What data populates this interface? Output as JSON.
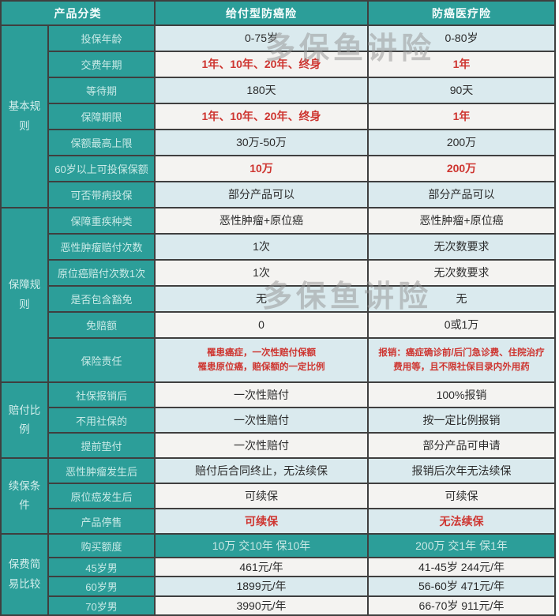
{
  "colors": {
    "teal": "#2C9E99",
    "red": "#CE3530",
    "rowLight": "#DAEAEE",
    "rowWhite": "#F4F3F1",
    "border": "#3F3F3F"
  },
  "watermark": {
    "text": "多保鱼讲险"
  },
  "table": {
    "header": {
      "h": 29,
      "col1": "产品分类",
      "col2": "给付型防癌险",
      "col3": "防癌医疗险"
    },
    "groups": [
      {
        "label": "基本规则",
        "start": 0,
        "count": 7
      },
      {
        "label": "保障规则",
        "start": 7,
        "count": 6
      },
      {
        "label": "赔付比例",
        "start": 13,
        "count": 3
      },
      {
        "label": "续保条件",
        "start": 16,
        "count": 3
      },
      {
        "label": "保费简易比较",
        "start": 19,
        "count": 4
      }
    ],
    "rows": [
      {
        "label": "投保年龄",
        "h": 31,
        "bg": "lb",
        "c2": {
          "text": "0-75岁",
          "emphasis": "dark"
        },
        "c3": {
          "text": "0-80岁",
          "emphasis": "dark"
        }
      },
      {
        "label": "交费年期",
        "h": 31,
        "bg": "wt",
        "c2": {
          "text": "1年、10年、20年、终身",
          "emphasis": "red"
        },
        "c3": {
          "text": "1年",
          "emphasis": "red"
        }
      },
      {
        "label": "等待期",
        "h": 31,
        "bg": "lb",
        "c2": {
          "text": "180天",
          "emphasis": "dark"
        },
        "c3": {
          "text": "90天",
          "emphasis": "dark"
        }
      },
      {
        "label": "保障期限",
        "h": 31,
        "bg": "wt",
        "c2": {
          "text": "1年、10年、20年、终身",
          "emphasis": "red"
        },
        "c3": {
          "text": "1年",
          "emphasis": "red"
        }
      },
      {
        "label": "保额最高上限",
        "h": 31,
        "bg": "lb",
        "c2": {
          "text": "30万-50万",
          "emphasis": "dark"
        },
        "c3": {
          "text": "200万",
          "emphasis": "dark"
        }
      },
      {
        "label": "60岁以上可投保保额",
        "h": 31,
        "bg": "wt",
        "c2": {
          "text": "10万",
          "emphasis": "red"
        },
        "c3": {
          "text": "200万",
          "emphasis": "red"
        }
      },
      {
        "label": "可否带病投保",
        "h": 31,
        "bg": "lb",
        "c2": {
          "text": "部分产品可以",
          "emphasis": "dark"
        },
        "c3": {
          "text": "部分产品可以",
          "emphasis": "dark"
        }
      },
      {
        "label": "保障重疾种类",
        "h": 31,
        "bg": "wt",
        "c2": {
          "text": "恶性肿瘤+原位癌",
          "emphasis": "dark"
        },
        "c3": {
          "text": "恶性肿瘤+原位癌",
          "emphasis": "dark"
        }
      },
      {
        "label": "恶性肿瘤赔付次数",
        "h": 31,
        "bg": "lb",
        "c2": {
          "text": "1次",
          "emphasis": "dark"
        },
        "c3": {
          "text": "无次数要求",
          "emphasis": "dark"
        }
      },
      {
        "label": "原位癌赔付次数1次",
        "h": 31,
        "bg": "wt",
        "c2": {
          "text": "1次",
          "emphasis": "dark"
        },
        "c3": {
          "text": "无次数要求",
          "emphasis": "dark"
        }
      },
      {
        "label": "是否包含豁免",
        "h": 31,
        "bg": "lb",
        "c2": {
          "text": "无",
          "emphasis": "dark"
        },
        "c3": {
          "text": "无",
          "emphasis": "dark"
        }
      },
      {
        "label": "免赔额",
        "h": 31,
        "bg": "wt",
        "c2": {
          "text": "0",
          "emphasis": "dark"
        },
        "c3": {
          "text": "0或1万",
          "emphasis": "dark"
        }
      },
      {
        "label": "保险责任",
        "h": 54,
        "bg": "lb",
        "small": true,
        "c2": {
          "text": "罹患癌症，一次性赔付保额\n罹患原位癌，赔保额的一定比例",
          "emphasis": "red"
        },
        "c3": {
          "text": "报销：癌症确诊前/后门急诊费、住院治疗\n费用等，且不限社保目录内外用药",
          "emphasis": "red"
        }
      },
      {
        "label": "社保报销后",
        "h": 30,
        "bg": "wt",
        "c2": {
          "text": "一次性赔付",
          "emphasis": "dark"
        },
        "c3": {
          "text": "100%报销",
          "emphasis": "dark"
        }
      },
      {
        "label": "不用社保的",
        "h": 30,
        "bg": "lb",
        "c2": {
          "text": "一次性赔付",
          "emphasis": "dark"
        },
        "c3": {
          "text": "按一定比例报销",
          "emphasis": "dark"
        }
      },
      {
        "label": "提前垫付",
        "h": 30,
        "bg": "wt",
        "c2": {
          "text": "一次性赔付",
          "emphasis": "dark"
        },
        "c3": {
          "text": "部分产品可申请",
          "emphasis": "dark"
        }
      },
      {
        "label": "恶性肿瘤发生后",
        "h": 30,
        "bg": "lb",
        "c2": {
          "text": "赔付后合同终止，无法续保",
          "emphasis": "dark"
        },
        "c3": {
          "text": "报销后次年无法续保",
          "emphasis": "dark"
        }
      },
      {
        "label": "原位癌发生后",
        "h": 30,
        "bg": "wt",
        "c2": {
          "text": "可续保",
          "emphasis": "dark"
        },
        "c3": {
          "text": "可续保",
          "emphasis": "dark"
        }
      },
      {
        "label": "产品停售",
        "h": 30,
        "bg": "lb",
        "c2": {
          "text": "可续保",
          "emphasis": "red"
        },
        "c3": {
          "text": "无法续保",
          "emphasis": "red"
        }
      },
      {
        "label": "购买额度",
        "h": 28,
        "bg": "teal",
        "c2": {
          "text": "10万 交10年 保10年",
          "emphasis": "pale"
        },
        "c3": {
          "text": "200万 交1年 保1年",
          "emphasis": "pale"
        }
      },
      {
        "label": "45岁男",
        "h": 22,
        "bg": "wt",
        "c2": {
          "text": "461元/年",
          "emphasis": "dark"
        },
        "c3": {
          "text": "41-45岁  244元/年",
          "emphasis": "dark"
        }
      },
      {
        "label": "60岁男",
        "h": 23,
        "bg": "lb",
        "c2": {
          "text": "1899元/年",
          "emphasis": "dark"
        },
        "c3": {
          "text": "56-60岁  471元/年",
          "emphasis": "dark"
        }
      },
      {
        "label": "70岁男",
        "h": 22,
        "bg": "wt",
        "c2": {
          "text": "3990元/年",
          "emphasis": "dark"
        },
        "c3": {
          "text": "66-70岁  911元/年",
          "emphasis": "dark"
        }
      }
    ]
  }
}
